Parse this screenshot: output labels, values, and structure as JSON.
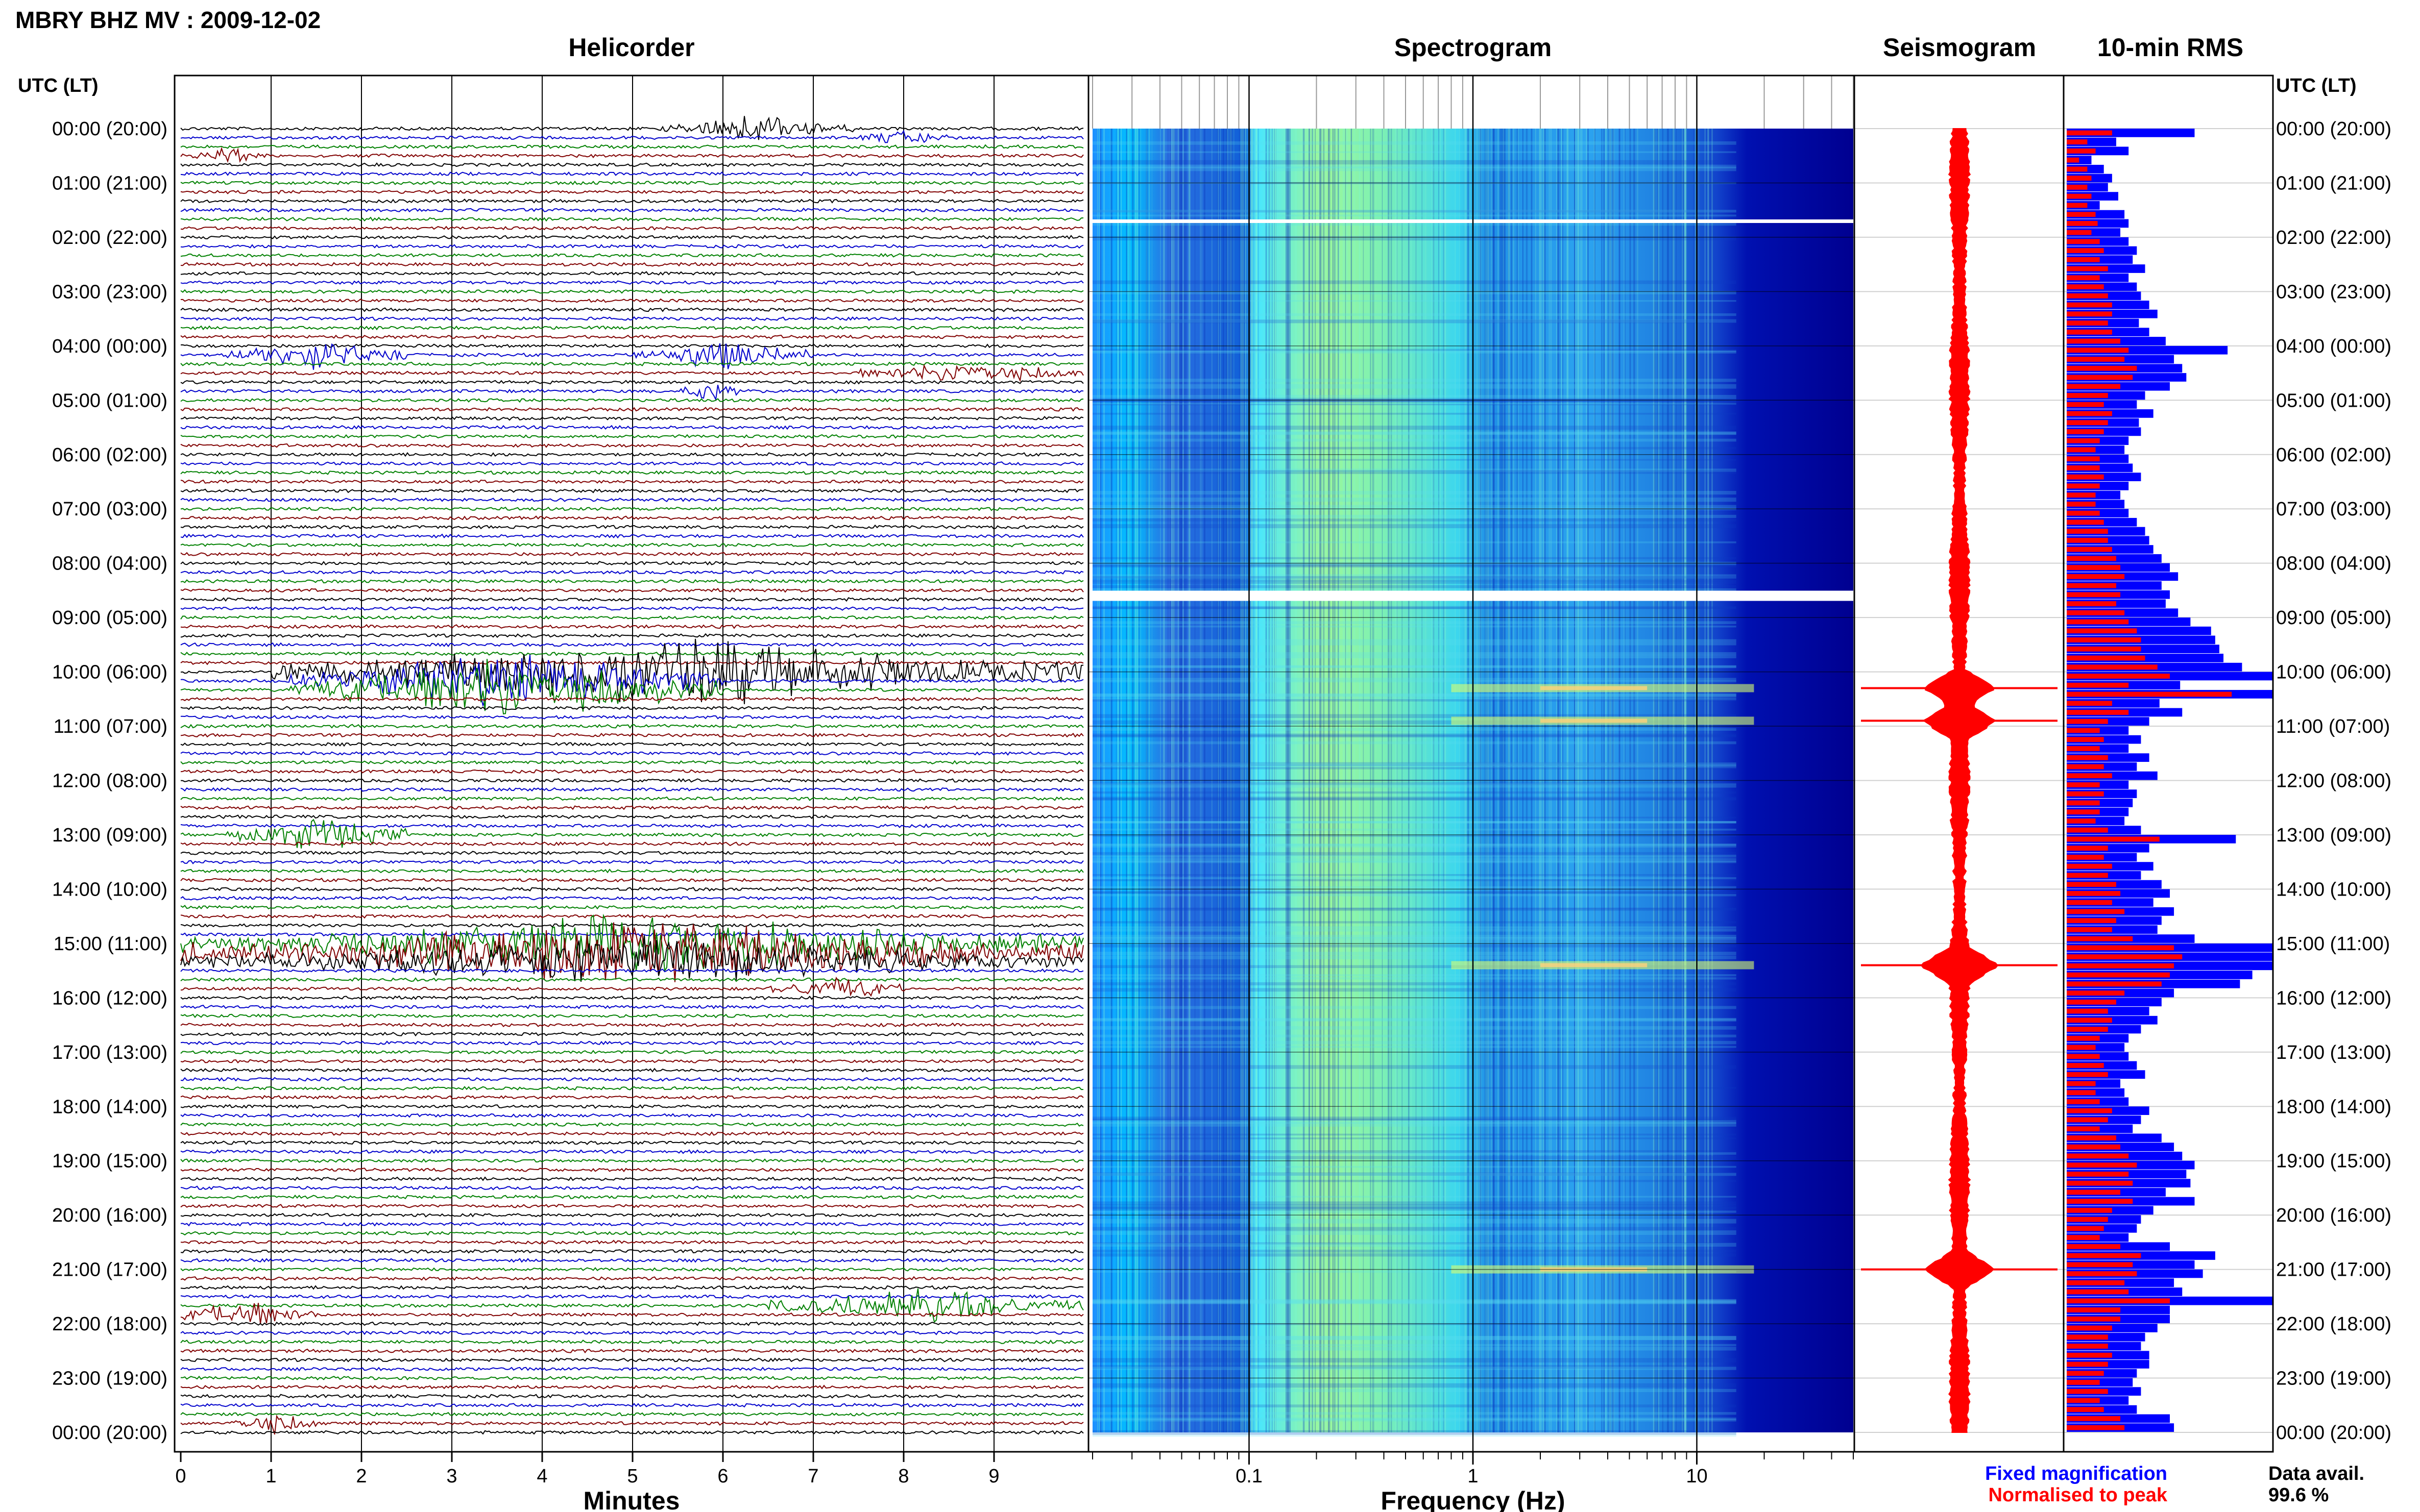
{
  "header": {
    "title": "MBRY BHZ MV : 2009-12-02"
  },
  "panels": {
    "helicorder_title": "Helicorder",
    "spectrogram_title": "Spectrogram",
    "seismogram_title": "Seismogram",
    "rms_title": "10-min RMS"
  },
  "time_axis": {
    "header_left": "UTC (LT)",
    "header_right": "UTC (LT)",
    "labels": [
      "00:00 (20:00)",
      "01:00 (21:00)",
      "02:00 (22:00)",
      "03:00 (23:00)",
      "04:00 (00:00)",
      "05:00 (01:00)",
      "06:00 (02:00)",
      "07:00 (03:00)",
      "08:00 (04:00)",
      "09:00 (05:00)",
      "10:00 (06:00)",
      "11:00 (07:00)",
      "12:00 (08:00)",
      "13:00 (09:00)",
      "14:00 (10:00)",
      "15:00 (11:00)",
      "16:00 (12:00)",
      "17:00 (13:00)",
      "18:00 (14:00)",
      "19:00 (15:00)",
      "20:00 (16:00)",
      "21:00 (17:00)",
      "22:00 (18:00)",
      "23:00 (19:00)",
      "00:00 (20:00)"
    ]
  },
  "legend": {
    "fixed": "Fixed magnification",
    "normalised": "Normalised to peak",
    "avail_label": "Data avail.",
    "avail_value": "99.6 %"
  },
  "colors": {
    "trace_cycle": [
      "#000000",
      "#0000cc",
      "#008000",
      "#800000"
    ],
    "spectro_low": "#00008b",
    "spectro_mid": "#00bfff",
    "spectro_high": "#adff2f",
    "seismogram": "#ff0000",
    "rms_fixed": "#0000ff",
    "rms_normalised": "#ff0000"
  },
  "chart_data": [
    {
      "type": "line",
      "title": "Helicorder",
      "xlabel": "Minutes",
      "x_ticks": [
        "0",
        "1",
        "2",
        "3",
        "4",
        "5",
        "6",
        "7",
        "8",
        "9"
      ],
      "xlim": [
        0,
        10
      ],
      "rows_per_hour": 6,
      "hours": 24,
      "strong_events": [
        {
          "row": 0,
          "start_min": 5.3,
          "end_min": 7.5,
          "amp": 1.0
        },
        {
          "row": 1,
          "start_min": 7.5,
          "end_min": 8.5,
          "amp": 0.7
        },
        {
          "row": 3,
          "start_min": 0.0,
          "end_min": 1.0,
          "amp": 0.7
        },
        {
          "row": 25,
          "start_min": 0.5,
          "end_min": 2.5,
          "amp": 1.2
        },
        {
          "row": 25,
          "start_min": 5.0,
          "end_min": 7.0,
          "amp": 1.2
        },
        {
          "row": 27,
          "start_min": 7.5,
          "end_min": 10.0,
          "amp": 1.0
        },
        {
          "row": 29,
          "start_min": 5.5,
          "end_min": 6.2,
          "amp": 0.9
        },
        {
          "row": 60,
          "start_min": 1.0,
          "end_min": 10.0,
          "amp": 3.0
        },
        {
          "row": 61,
          "start_min": 1.2,
          "end_min": 6.0,
          "amp": 2.5
        },
        {
          "row": 62,
          "start_min": 1.2,
          "end_min": 6.0,
          "amp": 3.0
        },
        {
          "row": 78,
          "start_min": 0.5,
          "end_min": 2.5,
          "amp": 1.5
        },
        {
          "row": 90,
          "start_min": 0.0,
          "end_min": 10.0,
          "amp": 2.5
        },
        {
          "row": 91,
          "start_min": 0.0,
          "end_min": 10.0,
          "amp": 3.0
        },
        {
          "row": 92,
          "start_min": 0.0,
          "end_min": 10.0,
          "amp": 2.0
        },
        {
          "row": 95,
          "start_min": 6.5,
          "end_min": 8.0,
          "amp": 1.0
        },
        {
          "row": 130,
          "start_min": 6.5,
          "end_min": 10.0,
          "amp": 1.5
        },
        {
          "row": 131,
          "start_min": 0.0,
          "end_min": 1.5,
          "amp": 1.2
        },
        {
          "row": 143,
          "start_min": 0.5,
          "end_min": 1.5,
          "amp": 1.0
        }
      ]
    },
    {
      "type": "heatmap",
      "title": "Spectrogram",
      "xlabel": "Frequency (Hz)",
      "x_scale": "log",
      "xlim": [
        0.02,
        50
      ],
      "x_ticks": [
        0.1,
        1,
        10
      ],
      "x_tick_labels": [
        "0.1",
        "1",
        "10"
      ],
      "data_gaps_hours": [
        1.7,
        8.6
      ],
      "bright_rows_hours": [
        10.3,
        10.9,
        15.4,
        21.0
      ]
    },
    {
      "type": "line",
      "title": "Seismogram",
      "peaks_hours": [
        10.3,
        10.9,
        15.4,
        21.0
      ]
    },
    {
      "type": "bar",
      "title": "10-min RMS",
      "orientation": "horizontal",
      "series": [
        {
          "name": "Fixed magnification",
          "values": [
            0.62,
            0.24,
            0.3,
            0.12,
            0.18,
            0.22,
            0.2,
            0.25,
            0.16,
            0.28,
            0.3,
            0.26,
            0.3,
            0.34,
            0.32,
            0.38,
            0.3,
            0.34,
            0.36,
            0.4,
            0.44,
            0.35,
            0.4,
            0.48,
            0.78,
            0.52,
            0.56,
            0.58,
            0.5,
            0.38,
            0.34,
            0.42,
            0.35,
            0.36,
            0.3,
            0.28,
            0.3,
            0.32,
            0.36,
            0.3,
            0.26,
            0.28,
            0.3,
            0.34,
            0.38,
            0.4,
            0.42,
            0.46,
            0.5,
            0.54,
            0.46,
            0.5,
            0.48,
            0.54,
            0.6,
            0.7,
            0.72,
            0.74,
            0.76,
            0.85,
            1.0,
            0.55,
            1.0,
            0.45,
            0.56,
            0.4,
            0.3,
            0.36,
            0.3,
            0.4,
            0.34,
            0.44,
            0.3,
            0.34,
            0.32,
            0.3,
            0.28,
            0.36,
            0.82,
            0.4,
            0.34,
            0.42,
            0.36,
            0.46,
            0.5,
            0.42,
            0.52,
            0.46,
            0.44,
            0.62,
            1.0,
            1.0,
            1.0,
            0.9,
            0.84,
            0.52,
            0.46,
            0.4,
            0.44,
            0.36,
            0.3,
            0.28,
            0.3,
            0.34,
            0.38,
            0.26,
            0.28,
            0.3,
            0.4,
            0.36,
            0.32,
            0.46,
            0.52,
            0.56,
            0.62,
            0.58,
            0.6,
            0.48,
            0.62,
            0.42,
            0.36,
            0.34,
            0.3,
            0.5,
            0.72,
            0.62,
            0.66,
            0.52,
            0.56,
            1.0,
            0.5,
            0.5,
            0.44,
            0.38,
            0.36,
            0.4,
            0.4,
            0.34,
            0.32,
            0.36,
            0.3,
            0.34,
            0.5,
            0.52
          ]
        },
        {
          "name": "Normalised to peak",
          "values": [
            0.22,
            0.1,
            0.14,
            0.06,
            0.1,
            0.12,
            0.1,
            0.12,
            0.1,
            0.14,
            0.15,
            0.12,
            0.16,
            0.18,
            0.16,
            0.2,
            0.16,
            0.18,
            0.2,
            0.22,
            0.22,
            0.2,
            0.22,
            0.26,
            0.3,
            0.28,
            0.34,
            0.32,
            0.26,
            0.2,
            0.18,
            0.22,
            0.2,
            0.18,
            0.16,
            0.14,
            0.16,
            0.16,
            0.18,
            0.16,
            0.14,
            0.14,
            0.16,
            0.18,
            0.2,
            0.2,
            0.22,
            0.24,
            0.26,
            0.28,
            0.24,
            0.26,
            0.24,
            0.28,
            0.3,
            0.34,
            0.36,
            0.36,
            0.38,
            0.44,
            0.5,
            0.3,
            0.8,
            0.22,
            0.3,
            0.2,
            0.16,
            0.18,
            0.16,
            0.2,
            0.18,
            0.22,
            0.16,
            0.18,
            0.16,
            0.16,
            0.14,
            0.2,
            0.45,
            0.2,
            0.18,
            0.22,
            0.2,
            0.24,
            0.26,
            0.22,
            0.28,
            0.24,
            0.22,
            0.32,
            0.52,
            0.56,
            0.52,
            0.5,
            0.46,
            0.28,
            0.24,
            0.2,
            0.22,
            0.2,
            0.16,
            0.14,
            0.16,
            0.18,
            0.2,
            0.14,
            0.14,
            0.16,
            0.22,
            0.2,
            0.16,
            0.24,
            0.26,
            0.3,
            0.34,
            0.3,
            0.32,
            0.26,
            0.32,
            0.22,
            0.2,
            0.18,
            0.16,
            0.26,
            0.36,
            0.32,
            0.34,
            0.28,
            0.3,
            0.5,
            0.26,
            0.26,
            0.22,
            0.2,
            0.2,
            0.22,
            0.2,
            0.18,
            0.16,
            0.2,
            0.16,
            0.18,
            0.26,
            0.28
          ]
        }
      ]
    }
  ]
}
